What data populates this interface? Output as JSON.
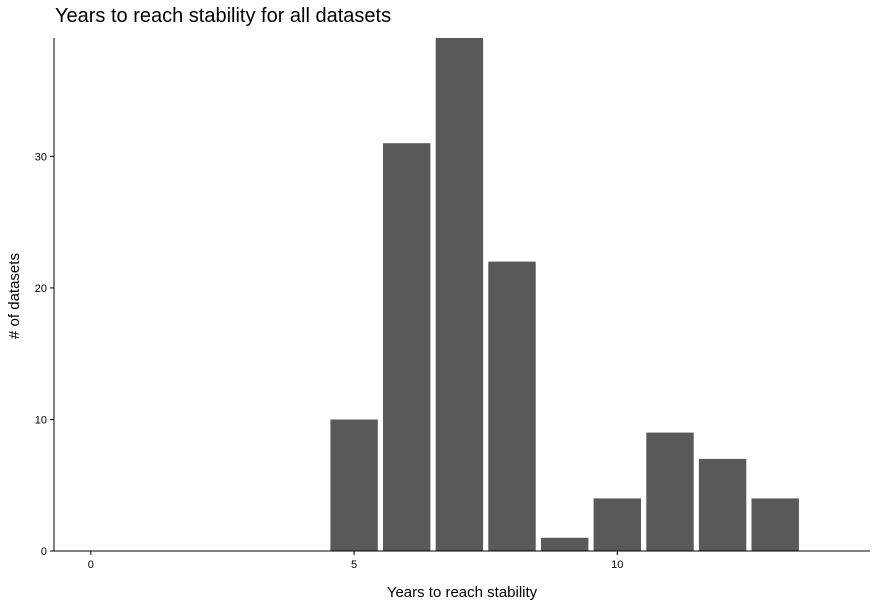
{
  "chart_data": {
    "type": "bar",
    "title": "Years to reach stability for all datasets",
    "xlabel": "Years to reach stability",
    "ylabel": "# of datasets",
    "x": [
      5,
      6,
      7,
      8,
      9,
      10,
      11,
      12,
      13
    ],
    "values": [
      10,
      31,
      39,
      22,
      1,
      4,
      9,
      7,
      4
    ],
    "xlim": [
      -0.7,
      14.8
    ],
    "ylim": [
      0,
      39
    ],
    "x_ticks": [
      0,
      5,
      10
    ],
    "y_ticks": [
      0,
      10,
      20,
      30
    ],
    "bar_color": "#595959",
    "grid": false
  }
}
